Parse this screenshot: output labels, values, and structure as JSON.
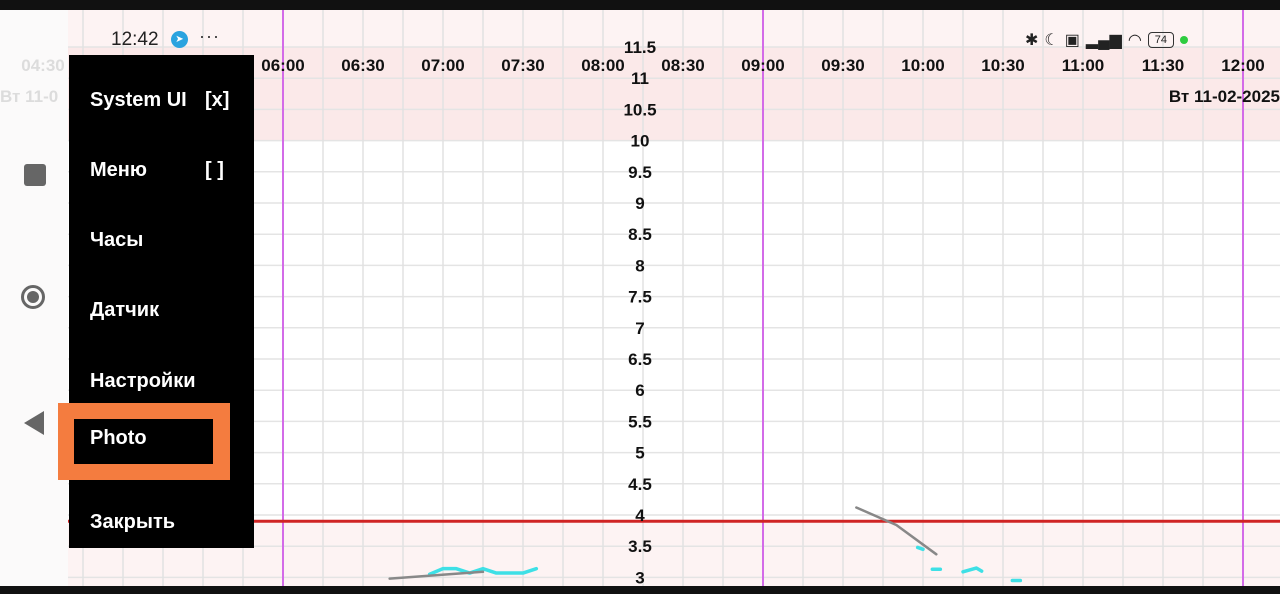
{
  "status_bar": {
    "time": "12:42",
    "dots": "···",
    "battery": "74",
    "icons": [
      "bluetooth-icon",
      "moon-icon",
      "volte-icon",
      "signal-icon",
      "wifi-icon",
      "battery-icon"
    ]
  },
  "chart": {
    "x_ticks": [
      "04:30",
      "06:00",
      "06:30",
      "07:00",
      "07:30",
      "08:00",
      "08:30",
      "09:00",
      "09:30",
      "10:00",
      "10:30",
      "11:00",
      "11:30",
      "12:00"
    ],
    "date_right": "Вт 11-02-2025",
    "date_left": "Вт 11-0",
    "y_ticks": [
      "11.5",
      "11",
      "10.5",
      "10",
      "9.5",
      "9",
      "8.5",
      "8",
      "7.5",
      "7",
      "6.5",
      "6",
      "5.5",
      "5",
      "4.5",
      "4",
      "3.5",
      "3"
    ]
  },
  "chart_data": {
    "type": "line",
    "title": "",
    "xlabel": "",
    "ylabel": "",
    "ylim": [
      3,
      11.5
    ],
    "xlim": [
      "04:30",
      "12:00"
    ],
    "grid": true,
    "threshold_line": 3.9,
    "day_separators": [
      "06:00",
      "09:00",
      "12:00"
    ],
    "series": [
      {
        "color": "#3ee0e6",
        "points": [
          [
            "06:55",
            3.05
          ],
          [
            "07:00",
            3.14
          ],
          [
            "07:05",
            3.14
          ],
          [
            "07:10",
            3.07
          ],
          [
            "07:15",
            3.14
          ],
          [
            "07:20",
            3.07
          ],
          [
            "07:30",
            3.07
          ],
          [
            "07:35",
            3.14
          ]
        ]
      },
      {
        "color": "#3ee0e6",
        "points": [
          [
            "09:58",
            3.48
          ],
          [
            "10:00",
            3.45
          ]
        ]
      },
      {
        "color": "#3ee0e6",
        "points": [
          [
            "10:05",
            3.13
          ]
        ]
      },
      {
        "color": "#3ee0e6",
        "points": [
          [
            "10:15",
            3.09
          ],
          [
            "10:20",
            3.15
          ],
          [
            "10:22",
            3.1
          ]
        ]
      },
      {
        "color": "#3ee0e6",
        "points": [
          [
            "10:35",
            2.95
          ]
        ]
      },
      {
        "color": "#888888",
        "points": [
          [
            "06:40",
            2.98
          ],
          [
            "07:15",
            3.09
          ]
        ]
      },
      {
        "color": "#888888",
        "points": [
          [
            "09:35",
            4.12
          ],
          [
            "09:50",
            3.84
          ],
          [
            "10:05",
            3.37
          ]
        ]
      }
    ]
  },
  "menu": {
    "items": [
      {
        "label": "System UI",
        "suffix": "[x]"
      },
      {
        "label": "Меню",
        "suffix": "[ ]"
      },
      {
        "label": "Часы",
        "suffix": ""
      },
      {
        "label": "Датчик",
        "suffix": ""
      },
      {
        "label": "Настройки",
        "suffix": ""
      },
      {
        "label": "Photo",
        "suffix": ""
      },
      {
        "label": "Закрыть",
        "suffix": ""
      }
    ],
    "highlight_color": "#f47c3f"
  },
  "nav": {
    "icons": [
      "square-icon",
      "record-icon",
      "back-icon"
    ]
  }
}
